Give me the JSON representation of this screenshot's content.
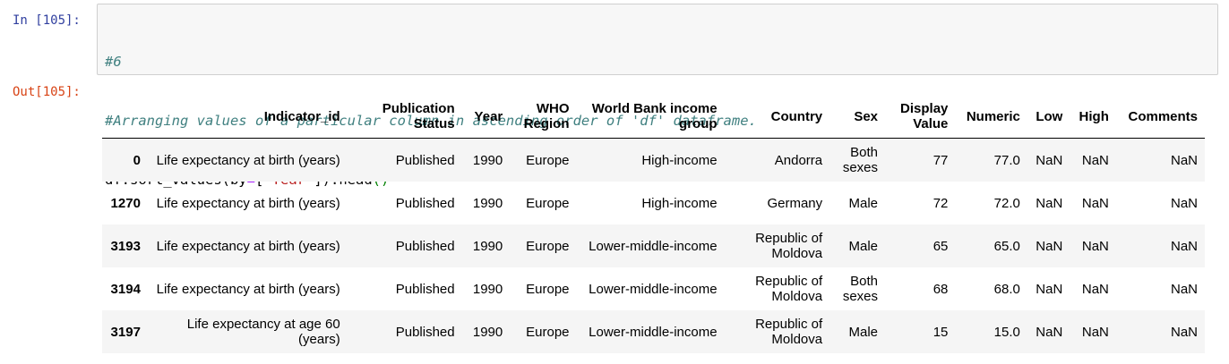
{
  "cell": {
    "in_prompt": "In [105]:",
    "out_prompt": "Out[105]:",
    "code": {
      "line1_comment": "#6",
      "line2_comment": "#Arranging values of a particular column in ascending order of 'df' dataframe.",
      "line3": {
        "part1": "df.sort_values(by",
        "op": "=",
        "bracket_open": "[",
        "string": "'Year'",
        "bracket_close": "]",
        "paren_close": ").head",
        "parens": "()"
      }
    }
  },
  "table": {
    "columns": [
      "",
      "Indicator_id",
      "Publication Status",
      "Year",
      "WHO Region",
      "World Bank income group",
      "Country",
      "Sex",
      "Display Value",
      "Numeric",
      "Low",
      "High",
      "Comments"
    ],
    "rows": [
      [
        "0",
        "Life expectancy at birth (years)",
        "Published",
        "1990",
        "Europe",
        "High-income",
        "Andorra",
        "Both sexes",
        "77",
        "77.0",
        "NaN",
        "NaN",
        "NaN"
      ],
      [
        "1270",
        "Life expectancy at birth (years)",
        "Published",
        "1990",
        "Europe",
        "High-income",
        "Germany",
        "Male",
        "72",
        "72.0",
        "NaN",
        "NaN",
        "NaN"
      ],
      [
        "3193",
        "Life expectancy at birth (years)",
        "Published",
        "1990",
        "Europe",
        "Lower-middle-income",
        "Republic of Moldova",
        "Male",
        "65",
        "65.0",
        "NaN",
        "NaN",
        "NaN"
      ],
      [
        "3194",
        "Life expectancy at birth (years)",
        "Published",
        "1990",
        "Europe",
        "Lower-middle-income",
        "Republic of Moldova",
        "Both sexes",
        "68",
        "68.0",
        "NaN",
        "NaN",
        "NaN"
      ],
      [
        "3197",
        "Life expectancy at age 60 (years)",
        "Published",
        "1990",
        "Europe",
        "Lower-middle-income",
        "Republic of Moldova",
        "Male",
        "15",
        "15.0",
        "NaN",
        "NaN",
        "NaN"
      ]
    ]
  }
}
